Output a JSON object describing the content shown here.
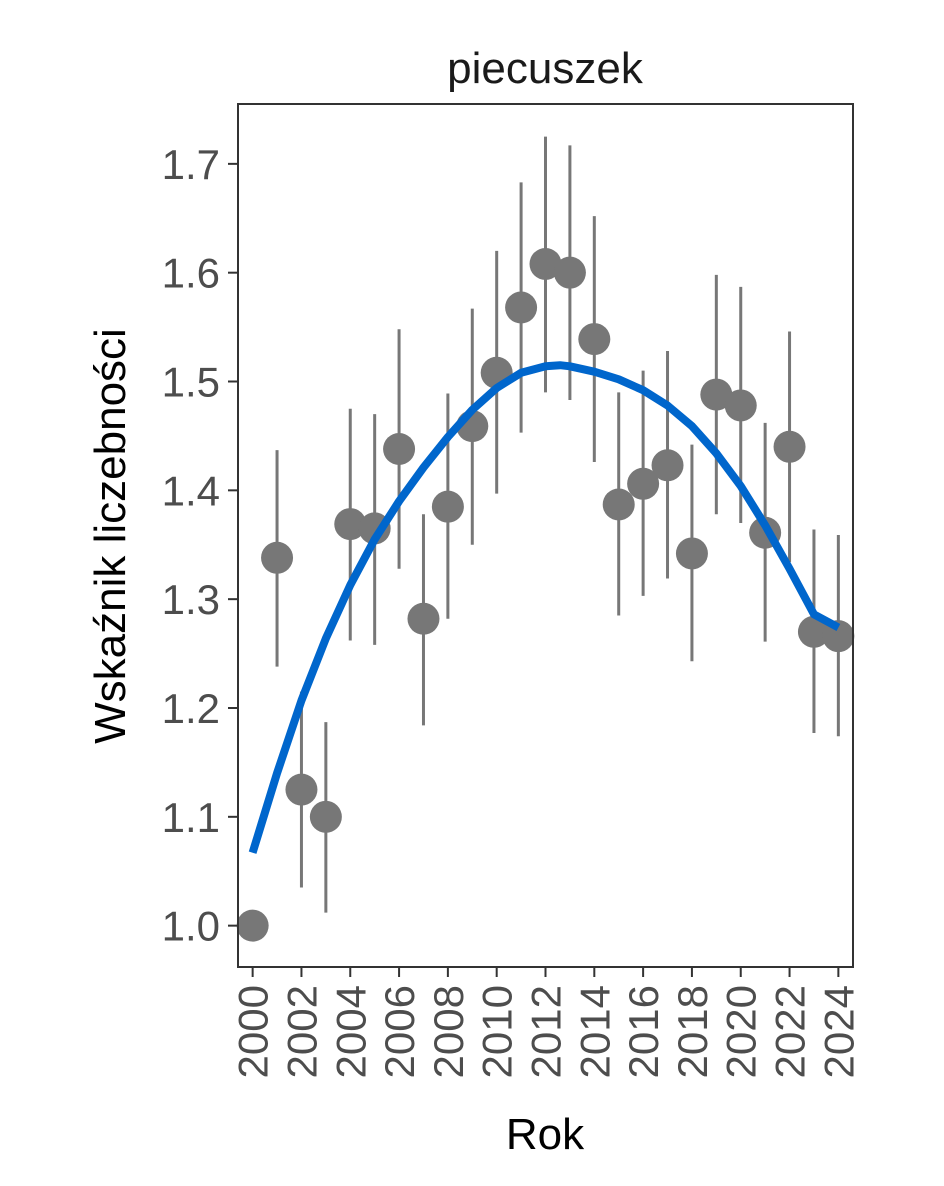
{
  "chart_data": {
    "type": "scatter",
    "title": "piecuszek",
    "xlabel": "Rok",
    "ylabel": "Wskaźnik liczebności",
    "xlim": [
      1999.4,
      2024.6
    ],
    "ylim": [
      0.962,
      1.755
    ],
    "x_ticks": [
      2000,
      2002,
      2004,
      2006,
      2008,
      2010,
      2012,
      2014,
      2016,
      2018,
      2020,
      2022,
      2024
    ],
    "x_tick_labels": [
      "2000",
      "2002",
      "2004",
      "2006",
      "2008",
      "2010",
      "2012",
      "2014",
      "2016",
      "2018",
      "2020",
      "2022",
      "2024"
    ],
    "y_ticks": [
      1.0,
      1.1,
      1.2,
      1.3,
      1.4,
      1.5,
      1.6,
      1.7
    ],
    "y_tick_labels": [
      "1.0",
      "1.1",
      "1.2",
      "1.3",
      "1.4",
      "1.5",
      "1.6",
      "1.7"
    ],
    "grid": false,
    "series": [
      {
        "type": "points_with_error_bars",
        "color": "#777777",
        "points": [
          {
            "x": 2000,
            "y": 1.0,
            "lo": null,
            "hi": null
          },
          {
            "x": 2001,
            "y": 1.338,
            "lo": 1.238,
            "hi": 1.437
          },
          {
            "x": 2002,
            "y": 1.125,
            "lo": 1.035,
            "hi": 1.215
          },
          {
            "x": 2003,
            "y": 1.1,
            "lo": 1.012,
            "hi": 1.187
          },
          {
            "x": 2004,
            "y": 1.369,
            "lo": 1.262,
            "hi": 1.475
          },
          {
            "x": 2005,
            "y": 1.365,
            "lo": 1.258,
            "hi": 1.47
          },
          {
            "x": 2006,
            "y": 1.438,
            "lo": 1.328,
            "hi": 1.548
          },
          {
            "x": 2007,
            "y": 1.282,
            "lo": 1.184,
            "hi": 1.378
          },
          {
            "x": 2008,
            "y": 1.385,
            "lo": 1.282,
            "hi": 1.489
          },
          {
            "x": 2009,
            "y": 1.459,
            "lo": 1.35,
            "hi": 1.567
          },
          {
            "x": 2010,
            "y": 1.508,
            "lo": 1.397,
            "hi": 1.62
          },
          {
            "x": 2011,
            "y": 1.568,
            "lo": 1.453,
            "hi": 1.683
          },
          {
            "x": 2012,
            "y": 1.608,
            "lo": 1.49,
            "hi": 1.725
          },
          {
            "x": 2013,
            "y": 1.6,
            "lo": 1.483,
            "hi": 1.717
          },
          {
            "x": 2014,
            "y": 1.539,
            "lo": 1.426,
            "hi": 1.652
          },
          {
            "x": 2015,
            "y": 1.387,
            "lo": 1.285,
            "hi": 1.49
          },
          {
            "x": 2016,
            "y": 1.406,
            "lo": 1.303,
            "hi": 1.51
          },
          {
            "x": 2017,
            "y": 1.423,
            "lo": 1.319,
            "hi": 1.528
          },
          {
            "x": 2018,
            "y": 1.342,
            "lo": 1.243,
            "hi": 1.442
          },
          {
            "x": 2019,
            "y": 1.488,
            "lo": 1.378,
            "hi": 1.598
          },
          {
            "x": 2020,
            "y": 1.478,
            "lo": 1.37,
            "hi": 1.587
          },
          {
            "x": 2021,
            "y": 1.361,
            "lo": 1.261,
            "hi": 1.462
          },
          {
            "x": 2022,
            "y": 1.44,
            "lo": 1.334,
            "hi": 1.546
          },
          {
            "x": 2023,
            "y": 1.27,
            "lo": 1.177,
            "hi": 1.364
          },
          {
            "x": 2024,
            "y": 1.266,
            "lo": 1.174,
            "hi": 1.359
          }
        ]
      },
      {
        "type": "line",
        "color": "#0066cc",
        "x": [
          2000,
          2001,
          2002,
          2003,
          2004,
          2005,
          2006,
          2007,
          2008,
          2009,
          2010,
          2011,
          2012,
          2012.6,
          2013,
          2014,
          2015,
          2016,
          2017,
          2018,
          2019,
          2020,
          2021,
          2022,
          2023,
          2024
        ],
        "y": [
          1.067,
          1.14,
          1.207,
          1.264,
          1.313,
          1.355,
          1.39,
          1.421,
          1.449,
          1.474,
          1.494,
          1.508,
          1.514,
          1.515,
          1.514,
          1.509,
          1.502,
          1.492,
          1.478,
          1.459,
          1.434,
          1.404,
          1.368,
          1.328,
          1.286,
          1.274
        ]
      }
    ]
  }
}
